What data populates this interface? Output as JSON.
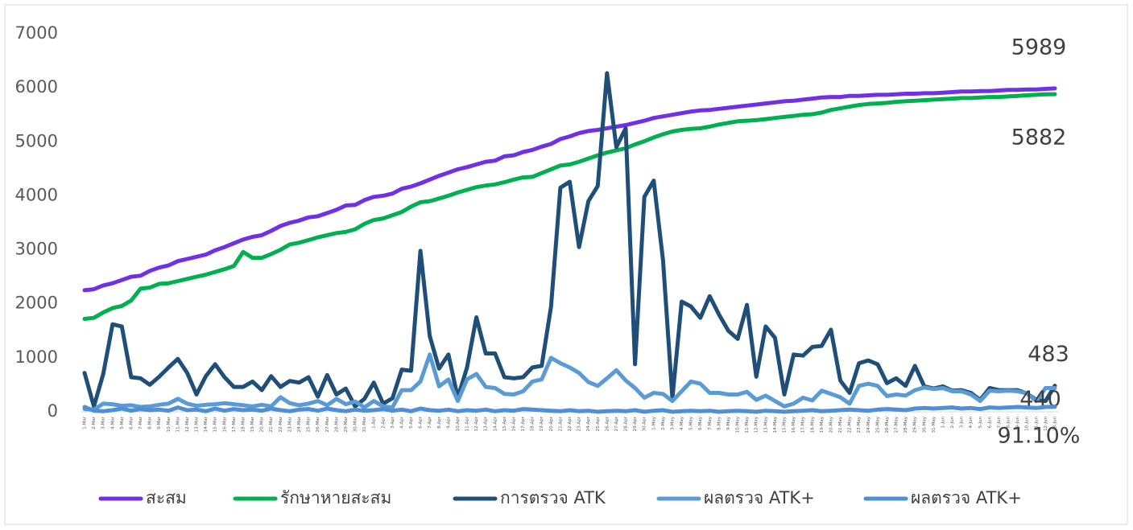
{
  "chart_data": {
    "type": "line",
    "categories": [
      "1-Mar",
      "2-Mar",
      "3-Mar",
      "4-Mar",
      "5-Mar",
      "6-Mar",
      "7-Mar",
      "8-Mar",
      "9-Mar",
      "10-Mar",
      "11-Mar",
      "12-Mar",
      "13-Mar",
      "14-Mar",
      "15-Mar",
      "16-Mar",
      "17-Mar",
      "18-Mar",
      "19-Mar",
      "20-Mar",
      "21-Mar",
      "22-Mar",
      "23-Mar",
      "24-Mar",
      "25-Mar",
      "26-Mar",
      "27-Mar",
      "28-Mar",
      "29-Mar",
      "30-Mar",
      "31-Mar",
      "1-Apr",
      "2-Apr",
      "3-Apr",
      "4-Apr",
      "5-Apr",
      "6-Apr",
      "7-Apr",
      "8-Apr",
      "9-Apr",
      "10-Apr",
      "11-Apr",
      "12-Apr",
      "13-Apr",
      "14-Apr",
      "15-Apr",
      "16-Apr",
      "17-Apr",
      "18-Apr",
      "19-Apr",
      "20-Apr",
      "21-Apr",
      "22-Apr",
      "23-Apr",
      "24-Apr",
      "25-Apr",
      "26-Apr",
      "27-Apr",
      "28-Apr",
      "29-Apr",
      "30-Apr",
      "1-May",
      "2-May",
      "3-May",
      "4-May",
      "5-May",
      "6-May",
      "7-May",
      "8-May",
      "9-May",
      "10-May",
      "11-May",
      "12-May",
      "13-May",
      "14-May",
      "15-May",
      "16-May",
      "17-May",
      "18-May",
      "19-May",
      "20-May",
      "21-May",
      "22-May",
      "23-May",
      "24-May",
      "25-May",
      "26-May",
      "27-May",
      "28-May",
      "29-May",
      "30-May",
      "31-May",
      "1-Jun",
      "2-Jun",
      "3-Jun",
      "4-Jun",
      "5-Jun",
      "6-Jun",
      "7-Jun",
      "8-Jun",
      "9-Jun",
      "10-Jun",
      "11-Jun",
      "12-Jun",
      "13-Jun"
    ],
    "series": [
      {
        "name": "สะสม",
        "color": "#7030e8",
        "values": [
          2250,
          2270,
          2340,
          2380,
          2440,
          2500,
          2520,
          2610,
          2670,
          2710,
          2790,
          2830,
          2870,
          2910,
          2990,
          3050,
          3120,
          3190,
          3240,
          3270,
          3350,
          3440,
          3500,
          3540,
          3600,
          3620,
          3680,
          3740,
          3820,
          3830,
          3920,
          3980,
          4000,
          4040,
          4130,
          4170,
          4230,
          4300,
          4370,
          4430,
          4490,
          4530,
          4580,
          4630,
          4650,
          4730,
          4750,
          4810,
          4850,
          4910,
          4960,
          5050,
          5100,
          5160,
          5200,
          5220,
          5250,
          5280,
          5310,
          5350,
          5390,
          5440,
          5470,
          5500,
          5530,
          5560,
          5580,
          5590,
          5610,
          5630,
          5650,
          5670,
          5690,
          5710,
          5730,
          5750,
          5760,
          5780,
          5800,
          5820,
          5830,
          5830,
          5850,
          5850,
          5860,
          5870,
          5870,
          5880,
          5890,
          5890,
          5900,
          5900,
          5910,
          5920,
          5930,
          5930,
          5940,
          5940,
          5950,
          5960,
          5960,
          5970,
          5970,
          5980,
          5989
        ]
      },
      {
        "name": "รักษาหายสะสม",
        "color": "#00b050",
        "values": [
          1720,
          1740,
          1840,
          1920,
          1960,
          2060,
          2280,
          2300,
          2370,
          2380,
          2420,
          2460,
          2500,
          2540,
          2590,
          2640,
          2700,
          2960,
          2850,
          2850,
          2920,
          3000,
          3100,
          3130,
          3180,
          3230,
          3270,
          3310,
          3330,
          3380,
          3480,
          3550,
          3580,
          3640,
          3700,
          3800,
          3880,
          3900,
          3950,
          4000,
          4060,
          4110,
          4160,
          4190,
          4210,
          4250,
          4300,
          4340,
          4350,
          4420,
          4490,
          4560,
          4580,
          4630,
          4690,
          4750,
          4800,
          4840,
          4880,
          4950,
          5010,
          5080,
          5140,
          5190,
          5220,
          5240,
          5250,
          5280,
          5320,
          5350,
          5380,
          5390,
          5400,
          5420,
          5440,
          5460,
          5480,
          5500,
          5510,
          5540,
          5590,
          5620,
          5650,
          5680,
          5700,
          5710,
          5720,
          5740,
          5750,
          5760,
          5770,
          5780,
          5790,
          5800,
          5810,
          5810,
          5820,
          5830,
          5830,
          5840,
          5850,
          5860,
          5870,
          5880,
          5882
        ]
      },
      {
        "name": "การตรวจ ATK",
        "color": "#1f4e79",
        "values": [
          720,
          100,
          700,
          1620,
          1580,
          640,
          620,
          500,
          650,
          820,
          980,
          720,
          320,
          660,
          880,
          640,
          460,
          460,
          560,
          400,
          660,
          460,
          570,
          540,
          640,
          280,
          680,
          320,
          430,
          100,
          240,
          540,
          150,
          250,
          780,
          760,
          2980,
          1400,
          800,
          1060,
          260,
          820,
          1750,
          1080,
          1080,
          640,
          620,
          640,
          820,
          850,
          1950,
          4150,
          4260,
          3050,
          3900,
          4180,
          6270,
          4900,
          5250,
          880,
          3980,
          4280,
          2800,
          250,
          2040,
          1950,
          1740,
          2140,
          1800,
          1500,
          1350,
          1980,
          650,
          1580,
          1370,
          320,
          1060,
          1040,
          1200,
          1220,
          1520,
          580,
          350,
          900,
          950,
          880,
          530,
          620,
          480,
          850,
          470,
          430,
          470,
          390,
          400,
          350,
          220,
          440,
          400,
          400,
          400,
          340,
          220,
          200,
          483
        ]
      },
      {
        "name": "ผลตรวจ ATK+",
        "color": "#5b9bd5",
        "values": [
          50,
          40,
          150,
          140,
          110,
          120,
          90,
          100,
          130,
          150,
          240,
          150,
          110,
          130,
          140,
          160,
          140,
          120,
          100,
          130,
          100,
          270,
          160,
          120,
          150,
          200,
          120,
          240,
          140,
          190,
          80,
          200,
          100,
          80,
          400,
          400,
          560,
          1060,
          470,
          600,
          200,
          600,
          700,
          460,
          440,
          330,
          320,
          380,
          560,
          600,
          1000,
          900,
          820,
          720,
          550,
          480,
          620,
          770,
          580,
          440,
          260,
          350,
          330,
          200,
          380,
          560,
          520,
          350,
          350,
          320,
          320,
          370,
          220,
          300,
          200,
          100,
          150,
          260,
          210,
          390,
          330,
          270,
          150,
          480,
          520,
          480,
          290,
          320,
          300,
          400,
          450,
          420,
          440,
          380,
          380,
          320,
          200,
          390,
          380,
          390,
          380,
          340,
          200,
          440,
          440
        ]
      },
      {
        "name": "ผลตรวจ ATK+",
        "color": "#4f8fd6",
        "values": [
          90,
          20,
          10,
          30,
          60,
          20,
          50,
          30,
          40,
          20,
          80,
          30,
          40,
          10,
          60,
          20,
          50,
          30,
          40,
          20,
          60,
          30,
          10,
          40,
          50,
          20,
          60,
          30,
          10,
          40,
          20,
          30,
          50,
          20,
          40,
          10,
          60,
          30,
          20,
          40,
          10,
          30,
          20,
          40,
          10,
          30,
          20,
          50,
          40,
          30,
          20,
          10,
          30,
          10,
          20,
          0,
          10,
          20,
          10,
          30,
          0,
          20,
          30,
          0,
          10,
          20,
          10,
          20,
          0,
          10,
          20,
          10,
          0,
          20,
          10,
          0,
          10,
          20,
          30,
          10,
          20,
          30,
          40,
          30,
          20,
          40,
          50,
          40,
          30,
          60,
          70,
          60,
          70,
          80,
          60,
          70,
          50,
          80,
          70,
          80,
          90,
          80,
          70,
          90,
          91.1
        ],
        "value_labels": [
          null,
          null,
          null,
          null,
          null,
          null,
          null,
          null,
          null,
          null,
          null,
          null,
          null,
          null,
          null,
          null,
          null,
          null,
          null,
          null,
          null,
          null,
          null,
          null,
          null,
          null,
          null,
          null,
          null,
          null,
          null,
          null,
          null,
          null,
          null,
          null,
          null,
          null,
          null,
          null,
          null,
          null,
          null,
          null,
          null,
          null,
          null,
          null,
          null,
          null,
          null,
          null,
          null,
          null,
          null,
          null,
          null,
          null,
          null,
          null,
          null,
          null,
          null,
          null,
          null,
          null,
          null,
          null,
          null,
          null,
          null,
          null,
          null,
          null,
          null,
          null,
          null,
          null,
          null,
          null,
          null,
          null,
          null,
          null,
          null,
          null,
          null,
          null,
          null,
          null,
          null,
          null,
          null,
          null,
          null,
          null,
          null,
          null,
          null,
          null,
          null,
          null,
          null,
          null,
          "91.10%"
        ]
      }
    ],
    "ylim": [
      0,
      7000
    ],
    "yticks": [
      0,
      1000,
      2000,
      3000,
      4000,
      5000,
      6000,
      7000
    ],
    "grid": false,
    "legend": "bottom"
  }
}
